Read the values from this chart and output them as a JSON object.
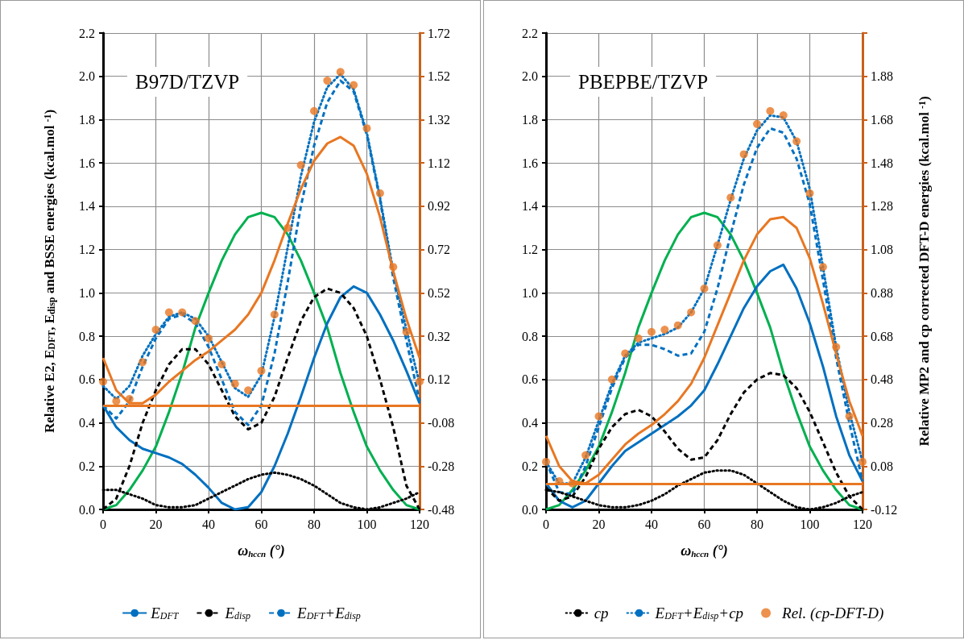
{
  "chart_data": [
    {
      "type": "line",
      "title": "B97D/TZVP",
      "xlabel": "ω$_{hccn}$ (°)",
      "ylabel": "Relative E2, E$_{DFT}$, E$_{disp}$ and BSSE energies (kcal.mol$^{-1}$)",
      "x": [
        0,
        5,
        10,
        15,
        20,
        25,
        30,
        35,
        40,
        45,
        50,
        55,
        60,
        65,
        70,
        75,
        80,
        85,
        90,
        95,
        100,
        105,
        110,
        115,
        120
      ],
      "xlim": [
        0,
        120
      ],
      "xticks": [
        0,
        20,
        40,
        60,
        80,
        100,
        120
      ],
      "ylim": [
        0,
        2.2
      ],
      "yticks": [
        {
          "value": 0,
          "label": "0.0"
        },
        {
          "value": 0.2,
          "label": "0.2"
        },
        {
          "value": 0.4,
          "label": "0.4"
        },
        {
          "value": 0.6,
          "label": "0.6"
        },
        {
          "value": 0.8,
          "label": "0.8"
        },
        {
          "value": 1,
          "label": "1.0"
        },
        {
          "value": 1.2,
          "label": "1.2"
        },
        {
          "value": 1.4,
          "label": "1.4"
        },
        {
          "value": 1.6,
          "label": "1.6"
        },
        {
          "value": 1.8,
          "label": "1.8"
        },
        {
          "value": 2,
          "label": "2.0"
        },
        {
          "value": 2.2,
          "label": "2.2"
        }
      ],
      "y2lim": [
        -0.48,
        1.72
      ],
      "y2ticks": [
        -0.48,
        -0.28,
        -0.08,
        0.12,
        0.32,
        0.52,
        0.72,
        0.92,
        1.12,
        1.32,
        1.52,
        1.72
      ],
      "grid": true,
      "legend": "bottom",
      "ref_lines": [
        {
          "axis": "y2",
          "value": 0,
          "color": "#e87722",
          "line_style": "solid"
        }
      ],
      "series": [
        {
          "type": "line",
          "color": "#00b050",
          "line_style": "solid",
          "marker": "none",
          "values": [
            0,
            0.02,
            0.09,
            0.18,
            0.29,
            0.45,
            0.63,
            0.84,
            1.0,
            1.15,
            1.27,
            1.35,
            1.37,
            1.35,
            1.27,
            1.15,
            1.0,
            0.84,
            0.63,
            0.45,
            0.29,
            0.18,
            0.09,
            0.02,
            0
          ]
        },
        {
          "type": "line",
          "name": "E$_{DFT}$",
          "color": "#0070c0",
          "line_style": "solid",
          "marker": "none",
          "values": [
            0.48,
            0.38,
            0.32,
            0.28,
            0.26,
            0.24,
            0.21,
            0.16,
            0.1,
            0.03,
            0,
            0.01,
            0.08,
            0.2,
            0.35,
            0.52,
            0.7,
            0.86,
            0.98,
            1.03,
            1.0,
            0.9,
            0.78,
            0.64,
            0.49
          ]
        },
        {
          "type": "line",
          "name": "E$_{disp}$",
          "color": "#000000",
          "line_style": "dashed",
          "marker": "none",
          "values": [
            0,
            0.05,
            0.2,
            0.4,
            0.55,
            0.67,
            0.74,
            0.74,
            0.67,
            0.55,
            0.43,
            0.37,
            0.4,
            0.52,
            0.7,
            0.87,
            0.98,
            1.02,
            1.0,
            0.93,
            0.8,
            0.6,
            0.38,
            0.11,
            0
          ]
        },
        {
          "type": "line",
          "name": "E$_{DFT}$+E$_{disp}$",
          "color": "#0070c0",
          "line_style": "dashed",
          "marker": "none",
          "values": [
            0.48,
            0.42,
            0.5,
            0.66,
            0.79,
            0.88,
            0.9,
            0.86,
            0.75,
            0.6,
            0.45,
            0.39,
            0.48,
            0.72,
            1.05,
            1.4,
            1.68,
            1.88,
            1.98,
            1.93,
            1.73,
            1.43,
            1.07,
            0.78,
            0.5
          ]
        },
        {
          "type": "line",
          "color": "#000000",
          "line_style": "dotted",
          "marker": "none",
          "values": [
            0.09,
            0.09,
            0.07,
            0.05,
            0.02,
            0.01,
            0.01,
            0.02,
            0.05,
            0.08,
            0.11,
            0.14,
            0.16,
            0.17,
            0.16,
            0.14,
            0.11,
            0.07,
            0.03,
            0.01,
            0,
            0.01,
            0.03,
            0.05,
            0.08
          ]
        },
        {
          "type": "line",
          "color": "#0070c0",
          "line_style": "dotted",
          "marker": "none",
          "values": [
            0.57,
            0.51,
            0.57,
            0.71,
            0.81,
            0.89,
            0.91,
            0.88,
            0.8,
            0.68,
            0.56,
            0.52,
            0.62,
            0.89,
            1.21,
            1.54,
            1.79,
            1.95,
            2.01,
            1.94,
            1.74,
            1.44,
            1.1,
            0.83,
            0.58
          ]
        },
        {
          "type": "line",
          "axis": "y2",
          "color": "#e87722",
          "line_style": "solid",
          "marker": "none",
          "values": [
            0.22,
            0.07,
            0.01,
            0.01,
            0.05,
            0.11,
            0.16,
            0.21,
            0.25,
            0.3,
            0.35,
            0.42,
            0.52,
            0.67,
            0.84,
            1.0,
            1.13,
            1.21,
            1.24,
            1.2,
            1.07,
            0.87,
            0.62,
            0.4,
            0.22
          ]
        },
        {
          "type": "scatter",
          "axis": "y2",
          "color": "#e87722",
          "marker": "circle",
          "values": [
            0.11,
            0.02,
            0.03,
            0.2,
            0.35,
            0.43,
            0.43,
            0.39,
            0.31,
            0.19,
            0.1,
            0.07,
            0.16,
            0.42,
            0.82,
            1.11,
            1.36,
            1.5,
            1.54,
            1.48,
            1.28,
            0.98,
            0.64,
            0.34,
            0.11
          ]
        }
      ]
    },
    {
      "type": "line",
      "title": "PBEPBE/TZVP",
      "xlabel": "ω$_{hccn}$ (°)",
      "y2label": "Relative MP2 and cp corrected DFT-D energies (kcal.mol$^{-1}$)",
      "x": [
        0,
        5,
        10,
        15,
        20,
        25,
        30,
        35,
        40,
        45,
        50,
        55,
        60,
        65,
        70,
        75,
        80,
        85,
        90,
        95,
        100,
        105,
        110,
        115,
        120
      ],
      "xlim": [
        0,
        120
      ],
      "xticks": [
        0,
        20,
        40,
        60,
        80,
        100,
        120
      ],
      "ylim": [
        0,
        2.2
      ],
      "yticks": [
        {
          "value": 0,
          "label": "0.0"
        },
        {
          "value": 0.2,
          "label": "0.2"
        },
        {
          "value": 0.4,
          "label": "0.4"
        },
        {
          "value": 0.6,
          "label": "0.6"
        },
        {
          "value": 0.8,
          "label": "0.8"
        },
        {
          "value": 1,
          "label": "1.0"
        },
        {
          "value": 1.2,
          "label": "1.2"
        },
        {
          "value": 1.4,
          "label": "1.4"
        },
        {
          "value": 1.6,
          "label": "1.6"
        },
        {
          "value": 1.8,
          "label": "1.8"
        },
        {
          "value": 2,
          "label": "2.0"
        },
        {
          "value": 2.2,
          "label": "2.2"
        }
      ],
      "y2lim": [
        -0.12,
        2.08
      ],
      "y2ticks": [
        -0.12,
        0.08,
        0.28,
        0.48,
        0.68,
        0.88,
        1.08,
        1.28,
        1.48,
        1.68,
        1.88,
        {
          "value": 2.08,
          "label": null
        }
      ],
      "grid": true,
      "legend": "bottom",
      "ref_lines": [
        {
          "axis": "y2",
          "value": 0,
          "color": "#e87722",
          "line_style": "solid"
        }
      ],
      "series": [
        {
          "type": "line",
          "color": "#00b050",
          "line_style": "solid",
          "marker": "none",
          "values": [
            0,
            0.02,
            0.09,
            0.18,
            0.29,
            0.45,
            0.63,
            0.84,
            1.0,
            1.15,
            1.27,
            1.35,
            1.37,
            1.35,
            1.27,
            1.15,
            1.0,
            0.84,
            0.63,
            0.45,
            0.29,
            0.18,
            0.09,
            0.02,
            0
          ]
        },
        {
          "type": "line",
          "color": "#0070c0",
          "line_style": "solid",
          "marker": "none",
          "values": [
            0.12,
            0.04,
            0.01,
            0.04,
            0.12,
            0.2,
            0.27,
            0.31,
            0.35,
            0.39,
            0.43,
            0.48,
            0.55,
            0.67,
            0.8,
            0.93,
            1.03,
            1.1,
            1.13,
            1.02,
            0.86,
            0.66,
            0.43,
            0.25,
            0.13
          ]
        },
        {
          "type": "line",
          "color": "#000000",
          "line_style": "dashed",
          "marker": "none",
          "values": [
            0.1,
            0.04,
            0.06,
            0.15,
            0.28,
            0.38,
            0.44,
            0.46,
            0.43,
            0.36,
            0.28,
            0.23,
            0.24,
            0.32,
            0.44,
            0.54,
            0.6,
            0.63,
            0.62,
            0.56,
            0.45,
            0.31,
            0.17,
            0.06,
            0
          ]
        },
        {
          "type": "line",
          "color": "#0070c0",
          "line_style": "dashed",
          "marker": "none",
          "values": [
            0.22,
            0.08,
            0.07,
            0.2,
            0.38,
            0.56,
            0.7,
            0.76,
            0.76,
            0.74,
            0.71,
            0.72,
            0.82,
            1.02,
            1.27,
            1.5,
            1.67,
            1.76,
            1.74,
            1.62,
            1.41,
            1.06,
            0.7,
            0.4,
            0.13
          ]
        },
        {
          "type": "line",
          "name": "cp",
          "color": "#000000",
          "line_style": "dotted",
          "marker": "none",
          "values": [
            0.09,
            0.08,
            0.06,
            0.04,
            0.02,
            0.01,
            0.01,
            0.02,
            0.04,
            0.07,
            0.11,
            0.14,
            0.17,
            0.18,
            0.18,
            0.16,
            0.12,
            0.08,
            0.04,
            0.01,
            0,
            0.01,
            0.03,
            0.06,
            0.08
          ]
        },
        {
          "type": "line",
          "name": "E$_{DFT}$+E$_{disp}$+cp",
          "color": "#0070c0",
          "line_style": "dotted",
          "marker": "none",
          "values": [
            0.22,
            0.12,
            0.12,
            0.24,
            0.41,
            0.58,
            0.71,
            0.77,
            0.79,
            0.81,
            0.84,
            0.91,
            1.02,
            1.22,
            1.43,
            1.62,
            1.75,
            1.82,
            1.81,
            1.7,
            1.48,
            1.12,
            0.75,
            0.45,
            0.22
          ]
        },
        {
          "type": "line",
          "axis": "y2",
          "color": "#e87722",
          "line_style": "solid",
          "marker": "none",
          "values": [
            0.22,
            0.08,
            0.01,
            0,
            0.04,
            0.11,
            0.18,
            0.23,
            0.27,
            0.32,
            0.38,
            0.46,
            0.58,
            0.73,
            0.88,
            1.03,
            1.15,
            1.22,
            1.23,
            1.18,
            1.04,
            0.83,
            0.6,
            0.38,
            0.22
          ]
        },
        {
          "type": "scatter",
          "name": "Rel. (cp-DFT-D)",
          "axis": "y2",
          "color": "#e87722",
          "marker": "circle",
          "values": [
            0.1,
            0.01,
            0,
            0.13,
            0.31,
            0.48,
            0.6,
            0.67,
            0.7,
            0.71,
            0.73,
            0.79,
            0.9,
            1.1,
            1.32,
            1.52,
            1.66,
            1.72,
            1.7,
            1.58,
            1.34,
            1.0,
            0.63,
            0.31,
            0.1
          ]
        }
      ]
    }
  ]
}
